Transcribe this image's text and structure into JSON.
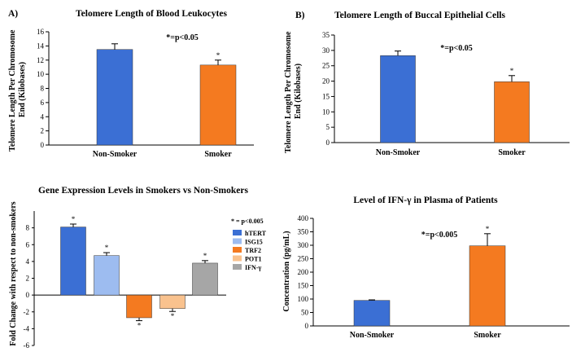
{
  "colors": {
    "blue": "#3b6fd4",
    "orange": "#f47a20",
    "light_blue": "#9dbcf0",
    "light_orange": "#f9c28e",
    "gray": "#a6a6a6"
  },
  "chart_data": [
    {
      "id": "A",
      "panel_label": "A)",
      "type": "bar",
      "title": "Telomere Length of Blood Leukocytes",
      "ylabel_lines": [
        "Telomere Length Per Chromosome",
        "End (Kilobases)"
      ],
      "xlabel": "",
      "categories": [
        "Non-Smoker",
        "Smoker"
      ],
      "values": [
        13.5,
        11.3
      ],
      "errors": [
        0.8,
        0.7
      ],
      "stars": [
        "",
        "*"
      ],
      "bar_colors": [
        "#3b6fd4",
        "#f47a20"
      ],
      "ylim": [
        0,
        16
      ],
      "yticks": [
        0,
        2,
        4,
        6,
        8,
        10,
        12,
        14,
        16
      ],
      "annotation": "*=p<0.05"
    },
    {
      "id": "B",
      "panel_label": "B)",
      "type": "bar",
      "title": "Telomere Length of Buccal Epithelial Cells",
      "ylabel_lines": [
        "Telomere Length Per Chromosome",
        "End (Kilobases)"
      ],
      "xlabel": "",
      "categories": [
        "Non-Smoker",
        "Smoker"
      ],
      "values": [
        28.3,
        19.8
      ],
      "errors": [
        1.5,
        2.0
      ],
      "stars": [
        "",
        "*"
      ],
      "bar_colors": [
        "#3b6fd4",
        "#f47a20"
      ],
      "ylim": [
        0,
        35
      ],
      "yticks": [
        0,
        5,
        10,
        15,
        20,
        25,
        30,
        35
      ],
      "annotation": "*=p<0.05"
    },
    {
      "id": "C",
      "panel_label": "",
      "type": "bar",
      "title": "Gene Expression Levels in Smokers vs Non-Smokers",
      "ylabel_lines": [
        "Fold Change with respect to non-smokers"
      ],
      "xlabel": "",
      "categories": [
        "hTERT",
        "ISG15",
        "TRF2",
        "POT1",
        "IFN-γ"
      ],
      "values": [
        8.1,
        4.7,
        -2.7,
        -1.6,
        3.8
      ],
      "errors": [
        0.35,
        0.35,
        0.35,
        0.35,
        0.3
      ],
      "stars": [
        "*",
        "*",
        "*",
        "*",
        "*"
      ],
      "bar_colors": [
        "#3b6fd4",
        "#9dbcf0",
        "#f47a20",
        "#f9c28e",
        "#a6a6a6"
      ],
      "ylim": [
        -6,
        10
      ],
      "yticks": [
        -6,
        -4,
        -2,
        0,
        2,
        4,
        6,
        8
      ],
      "legend_title": "* = p<0.005",
      "legend": [
        "hTERT",
        "ISG15",
        "TRF2",
        "POT1",
        "IFN-γ"
      ]
    },
    {
      "id": "D",
      "panel_label": "",
      "type": "bar",
      "title": "Level of IFN-γ in Plasma of Patients",
      "ylabel_lines": [
        "Concentration (pg/mL)"
      ],
      "xlabel": "",
      "categories": [
        "Non-Smoker",
        "Smoker"
      ],
      "values": [
        95,
        298
      ],
      "errors": [
        2,
        45
      ],
      "stars": [
        "",
        "*"
      ],
      "bar_colors": [
        "#3b6fd4",
        "#f47a20"
      ],
      "ylim": [
        0,
        400
      ],
      "yticks": [
        0,
        50,
        100,
        150,
        200,
        250,
        300,
        350,
        400
      ],
      "annotation": "*=p<0.005"
    }
  ]
}
